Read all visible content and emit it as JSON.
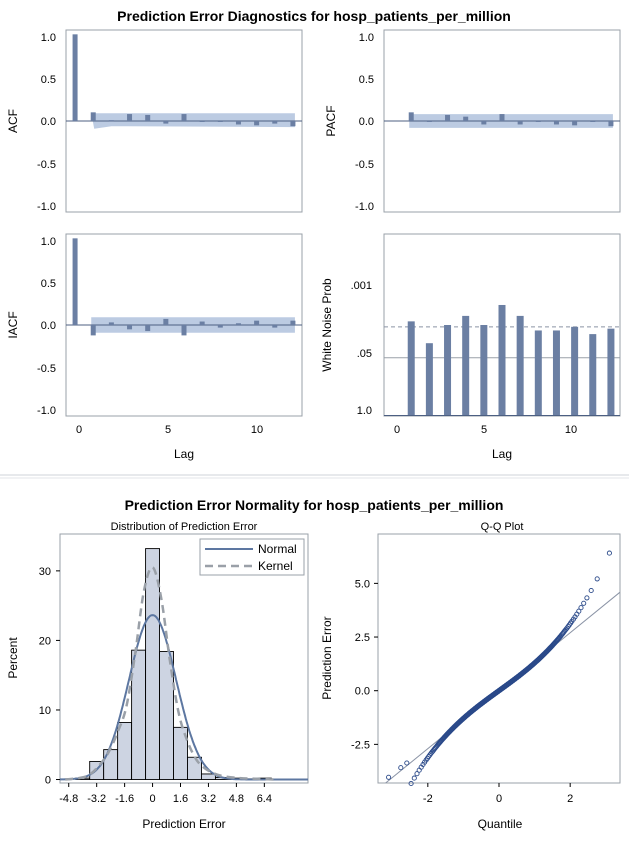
{
  "colors": {
    "bar": "#6b7fa3",
    "bar_stroke": "#4c5f82",
    "band": "#b5c5df",
    "hist_fill": "#cdd4e2",
    "normal_line": "#5d77a1",
    "kernel_line": "#9aa0a8",
    "frame": "#9aa0a8",
    "point": "#2b4a8a",
    "ref": "#8a93a5",
    "separator": "#cfd3d8"
  },
  "diagnostics": {
    "title": "Prediction Error Diagnostics for hosp_patients_per_million",
    "x_label": "Lag",
    "x_ticks": [
      "0",
      "5",
      "10"
    ],
    "lag_range": [
      -0.5,
      12.5
    ]
  },
  "normality": {
    "title": "Prediction Error Normality for hosp_patients_per_million"
  },
  "chart_data": [
    {
      "type": "bar",
      "name": "ACF",
      "ylabel": "ACF",
      "ylim": [
        -1.05,
        1.05
      ],
      "y_ticks": [
        "1.0",
        "0.5",
        "0.0",
        "-0.5",
        "-1.0"
      ],
      "lags": [
        0,
        1,
        2,
        3,
        4,
        5,
        6,
        7,
        8,
        9,
        10,
        11,
        12
      ],
      "values": [
        1.0,
        0.1,
        0.01,
        0.08,
        0.07,
        -0.03,
        0.08,
        -0.01,
        0.0,
        -0.04,
        -0.05,
        -0.03,
        -0.06
      ],
      "band": {
        "lag_start": 1,
        "upper": 0.09,
        "lower_start": -0.09,
        "lower_end": -0.07,
        "lower_at_lag_2": -0.06,
        "lag_end": 12
      }
    },
    {
      "type": "bar",
      "name": "PACF",
      "ylabel": "PACF",
      "ylim": [
        -1.05,
        1.05
      ],
      "y_ticks": [
        "1.0",
        "0.5",
        "0.0",
        "-0.5",
        "-1.0"
      ],
      "lags": [
        1,
        2,
        3,
        4,
        5,
        6,
        7,
        8,
        9,
        10,
        11,
        12
      ],
      "values": [
        0.1,
        0.0,
        0.07,
        0.05,
        -0.04,
        0.08,
        -0.04,
        0.0,
        -0.04,
        -0.05,
        0.0,
        -0.06
      ],
      "band": {
        "lag_start": 1,
        "upper": 0.08,
        "lower": -0.08,
        "lag_end": 12
      }
    },
    {
      "type": "bar",
      "name": "IACF",
      "ylabel": "IACF",
      "ylim": [
        -1.05,
        1.05
      ],
      "y_ticks": [
        "1.0",
        "0.5",
        "0.0",
        "-0.5",
        "-1.0"
      ],
      "lags": [
        0,
        1,
        2,
        3,
        4,
        5,
        6,
        7,
        8,
        9,
        10,
        11,
        12
      ],
      "values": [
        1.0,
        -0.12,
        0.03,
        -0.05,
        -0.07,
        0.07,
        -0.12,
        0.04,
        -0.03,
        0.02,
        0.05,
        -0.03,
        0.05
      ],
      "band": {
        "lag_start": 1,
        "upper": 0.09,
        "lower": -0.09,
        "lag_end": 12
      }
    },
    {
      "type": "bar",
      "name": "White Noise Prob",
      "ylabel": "White Noise Prob",
      "y_ticks": [
        ".001",
        ".05",
        "1.0"
      ],
      "y_tick_fraction_from_bottom": [
        0.77,
        0.32,
        0.0
      ],
      "lags": [
        1,
        2,
        3,
        4,
        5,
        6,
        7,
        8,
        9,
        10,
        11,
        12
      ],
      "level_from_bottom": [
        0.52,
        0.4,
        0.5,
        0.55,
        0.5,
        0.61,
        0.55,
        0.47,
        0.47,
        0.49,
        0.45,
        0.48
      ],
      "ref_lines_fraction_from_bottom": [
        0.49,
        0.32
      ]
    },
    {
      "type": "bar",
      "subtitle": "Distribution of Prediction Error",
      "xlabel": "Prediction Error",
      "ylabel": "Percent",
      "xlim": [
        -5.3,
        8.9
      ],
      "ylim": [
        -0.5,
        35.3
      ],
      "x_ticks": [
        "-4.8",
        "-3.2",
        "-1.6",
        "0",
        "1.6",
        "3.2",
        "4.8",
        "6.4"
      ],
      "x_tick_values": [
        -4.8,
        -3.2,
        -1.6,
        0,
        1.6,
        3.2,
        4.8,
        6.4
      ],
      "y_ticks": [
        "0",
        "10",
        "20",
        "30"
      ],
      "y_tick_values": [
        0,
        10,
        20,
        30
      ],
      "bin_width": 0.8,
      "bin_centers": [
        -4.0,
        -3.2,
        -2.4,
        -1.6,
        -0.8,
        0.0,
        0.8,
        1.6,
        2.4,
        3.2,
        4.0,
        4.8,
        5.6,
        6.4
      ],
      "values": [
        0.2,
        2.6,
        4.3,
        8.2,
        18.6,
        33.2,
        18.4,
        7.5,
        3.2,
        0.8,
        0.3,
        0.2,
        0.1,
        0.2
      ],
      "legend": [
        "Normal",
        "Kernel"
      ],
      "legend_position": "top-right",
      "normal": {
        "mean": 0.0,
        "sd": 1.35
      },
      "kernel": {
        "x": [
          -5.0,
          -4.0,
          -3.5,
          -3.0,
          -2.5,
          -2.0,
          -1.5,
          -1.0,
          -0.5,
          0.0,
          0.5,
          1.0,
          1.5,
          2.0,
          2.5,
          3.0,
          3.5,
          4.0,
          5.0,
          6.0,
          7.0
        ],
        "y": [
          0.0,
          0.3,
          0.9,
          2.2,
          4.0,
          6.8,
          10.5,
          18.0,
          27.0,
          30.5,
          26.0,
          17.0,
          9.5,
          5.5,
          2.9,
          1.6,
          0.9,
          0.5,
          0.2,
          0.1,
          0.0
        ]
      }
    },
    {
      "type": "scatter",
      "subtitle": "Q-Q Plot",
      "xlabel": "Quantile",
      "ylabel": "Prediction Error",
      "xlim": [
        -3.4,
        3.4
      ],
      "ylim": [
        -4.3,
        7.3
      ],
      "x_ticks": [
        "-2",
        "0",
        "2"
      ],
      "x_tick_values": [
        -2,
        0,
        2
      ],
      "y_ticks": [
        "5.0",
        "2.5",
        "0.0",
        "-2.5"
      ],
      "y_tick_values": [
        5.0,
        2.5,
        0.0,
        -2.5
      ],
      "reference_line": {
        "intercept": 0.0,
        "slope": 1.35
      },
      "point_count": 520
    }
  ]
}
